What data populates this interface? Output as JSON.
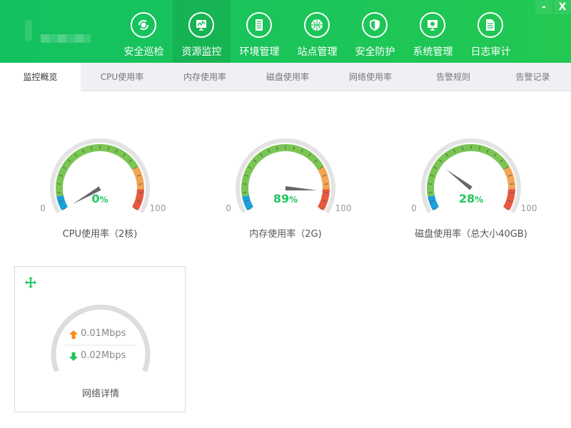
{
  "window": {
    "minimize": "-",
    "close": "X"
  },
  "nav": [
    {
      "label": "安全巡检",
      "icon": "patrol-icon"
    },
    {
      "label": "资源监控",
      "icon": "monitor-chart-icon",
      "active": true
    },
    {
      "label": "环境管理",
      "icon": "building-icon"
    },
    {
      "label": "站点管理",
      "icon": "globe-icon"
    },
    {
      "label": "安全防护",
      "icon": "shield-icon"
    },
    {
      "label": "系统管理",
      "icon": "settings-monitor-icon"
    },
    {
      "label": "日志审计",
      "icon": "document-icon"
    }
  ],
  "tabs": [
    "监控概览",
    "CPU使用率",
    "内存使用率",
    "磁盘使用率",
    "网络使用率",
    "告警规则",
    "告警记录"
  ],
  "gauges": [
    {
      "value": 0,
      "unit": "%",
      "label": "CPU使用率（2核)",
      "min": "0",
      "max": "100"
    },
    {
      "value": 89,
      "unit": "%",
      "label": "内存使用率（2G)",
      "min": "0",
      "max": "100"
    },
    {
      "value": 28,
      "unit": "%",
      "label": "磁盘使用率（总大小40GB)",
      "min": "0",
      "max": "100"
    }
  ],
  "gauge_colors": {
    "low": "#1aa0dc",
    "normal": "#7ac653",
    "warn": "#f2a553",
    "danger": "#e8583f",
    "track": "#e3e3e3",
    "value_text": "#22c55e"
  },
  "network": {
    "title": "网络详情",
    "upload": "0.01Mbps",
    "download": "0.02Mbps",
    "upload_color": "#fa8c16",
    "download_color": "#1ec25a"
  }
}
